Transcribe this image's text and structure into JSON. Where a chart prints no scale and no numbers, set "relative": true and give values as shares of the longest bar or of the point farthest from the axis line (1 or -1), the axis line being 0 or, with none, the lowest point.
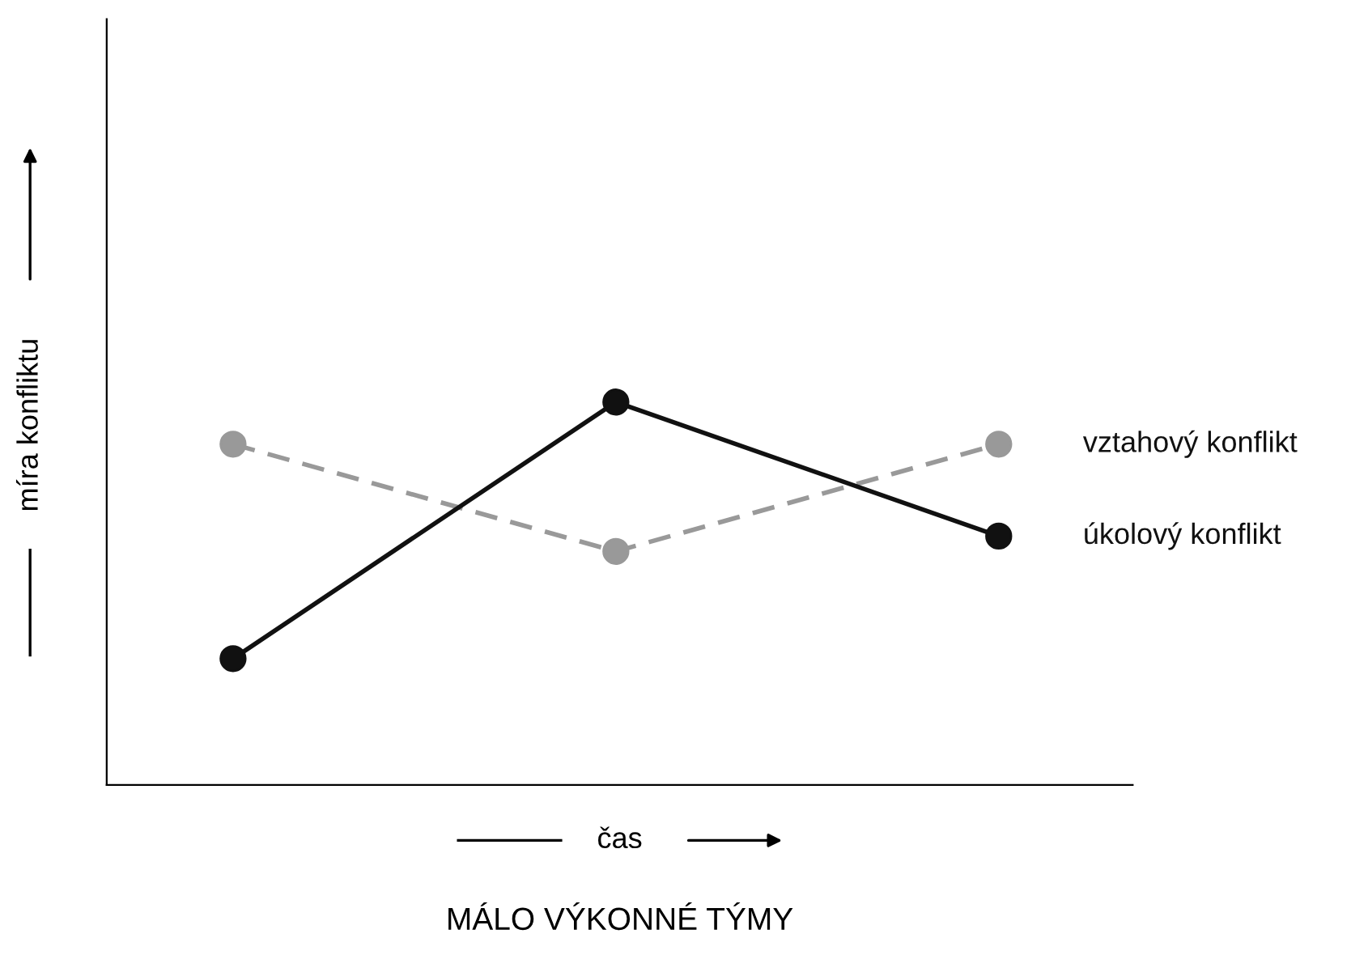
{
  "chart_data": {
    "type": "line",
    "title": "MÁLO VÝKONNÉ TÝMY",
    "xlabel": "čas",
    "ylabel": "míra konfliktu",
    "categories": [
      null,
      null,
      null
    ],
    "relative": true,
    "marker": "circle",
    "legend": false,
    "grid": false,
    "series": [
      {
        "name": "vztahový konflikt",
        "color": "#999999",
        "line_style": "dashed",
        "values": [
          0.89,
          0.61,
          0.89
        ]
      },
      {
        "name": "úkolový konflikt",
        "color": "#111111",
        "line_style": "solid",
        "values": [
          0.33,
          1.0,
          0.65
        ]
      }
    ]
  }
}
